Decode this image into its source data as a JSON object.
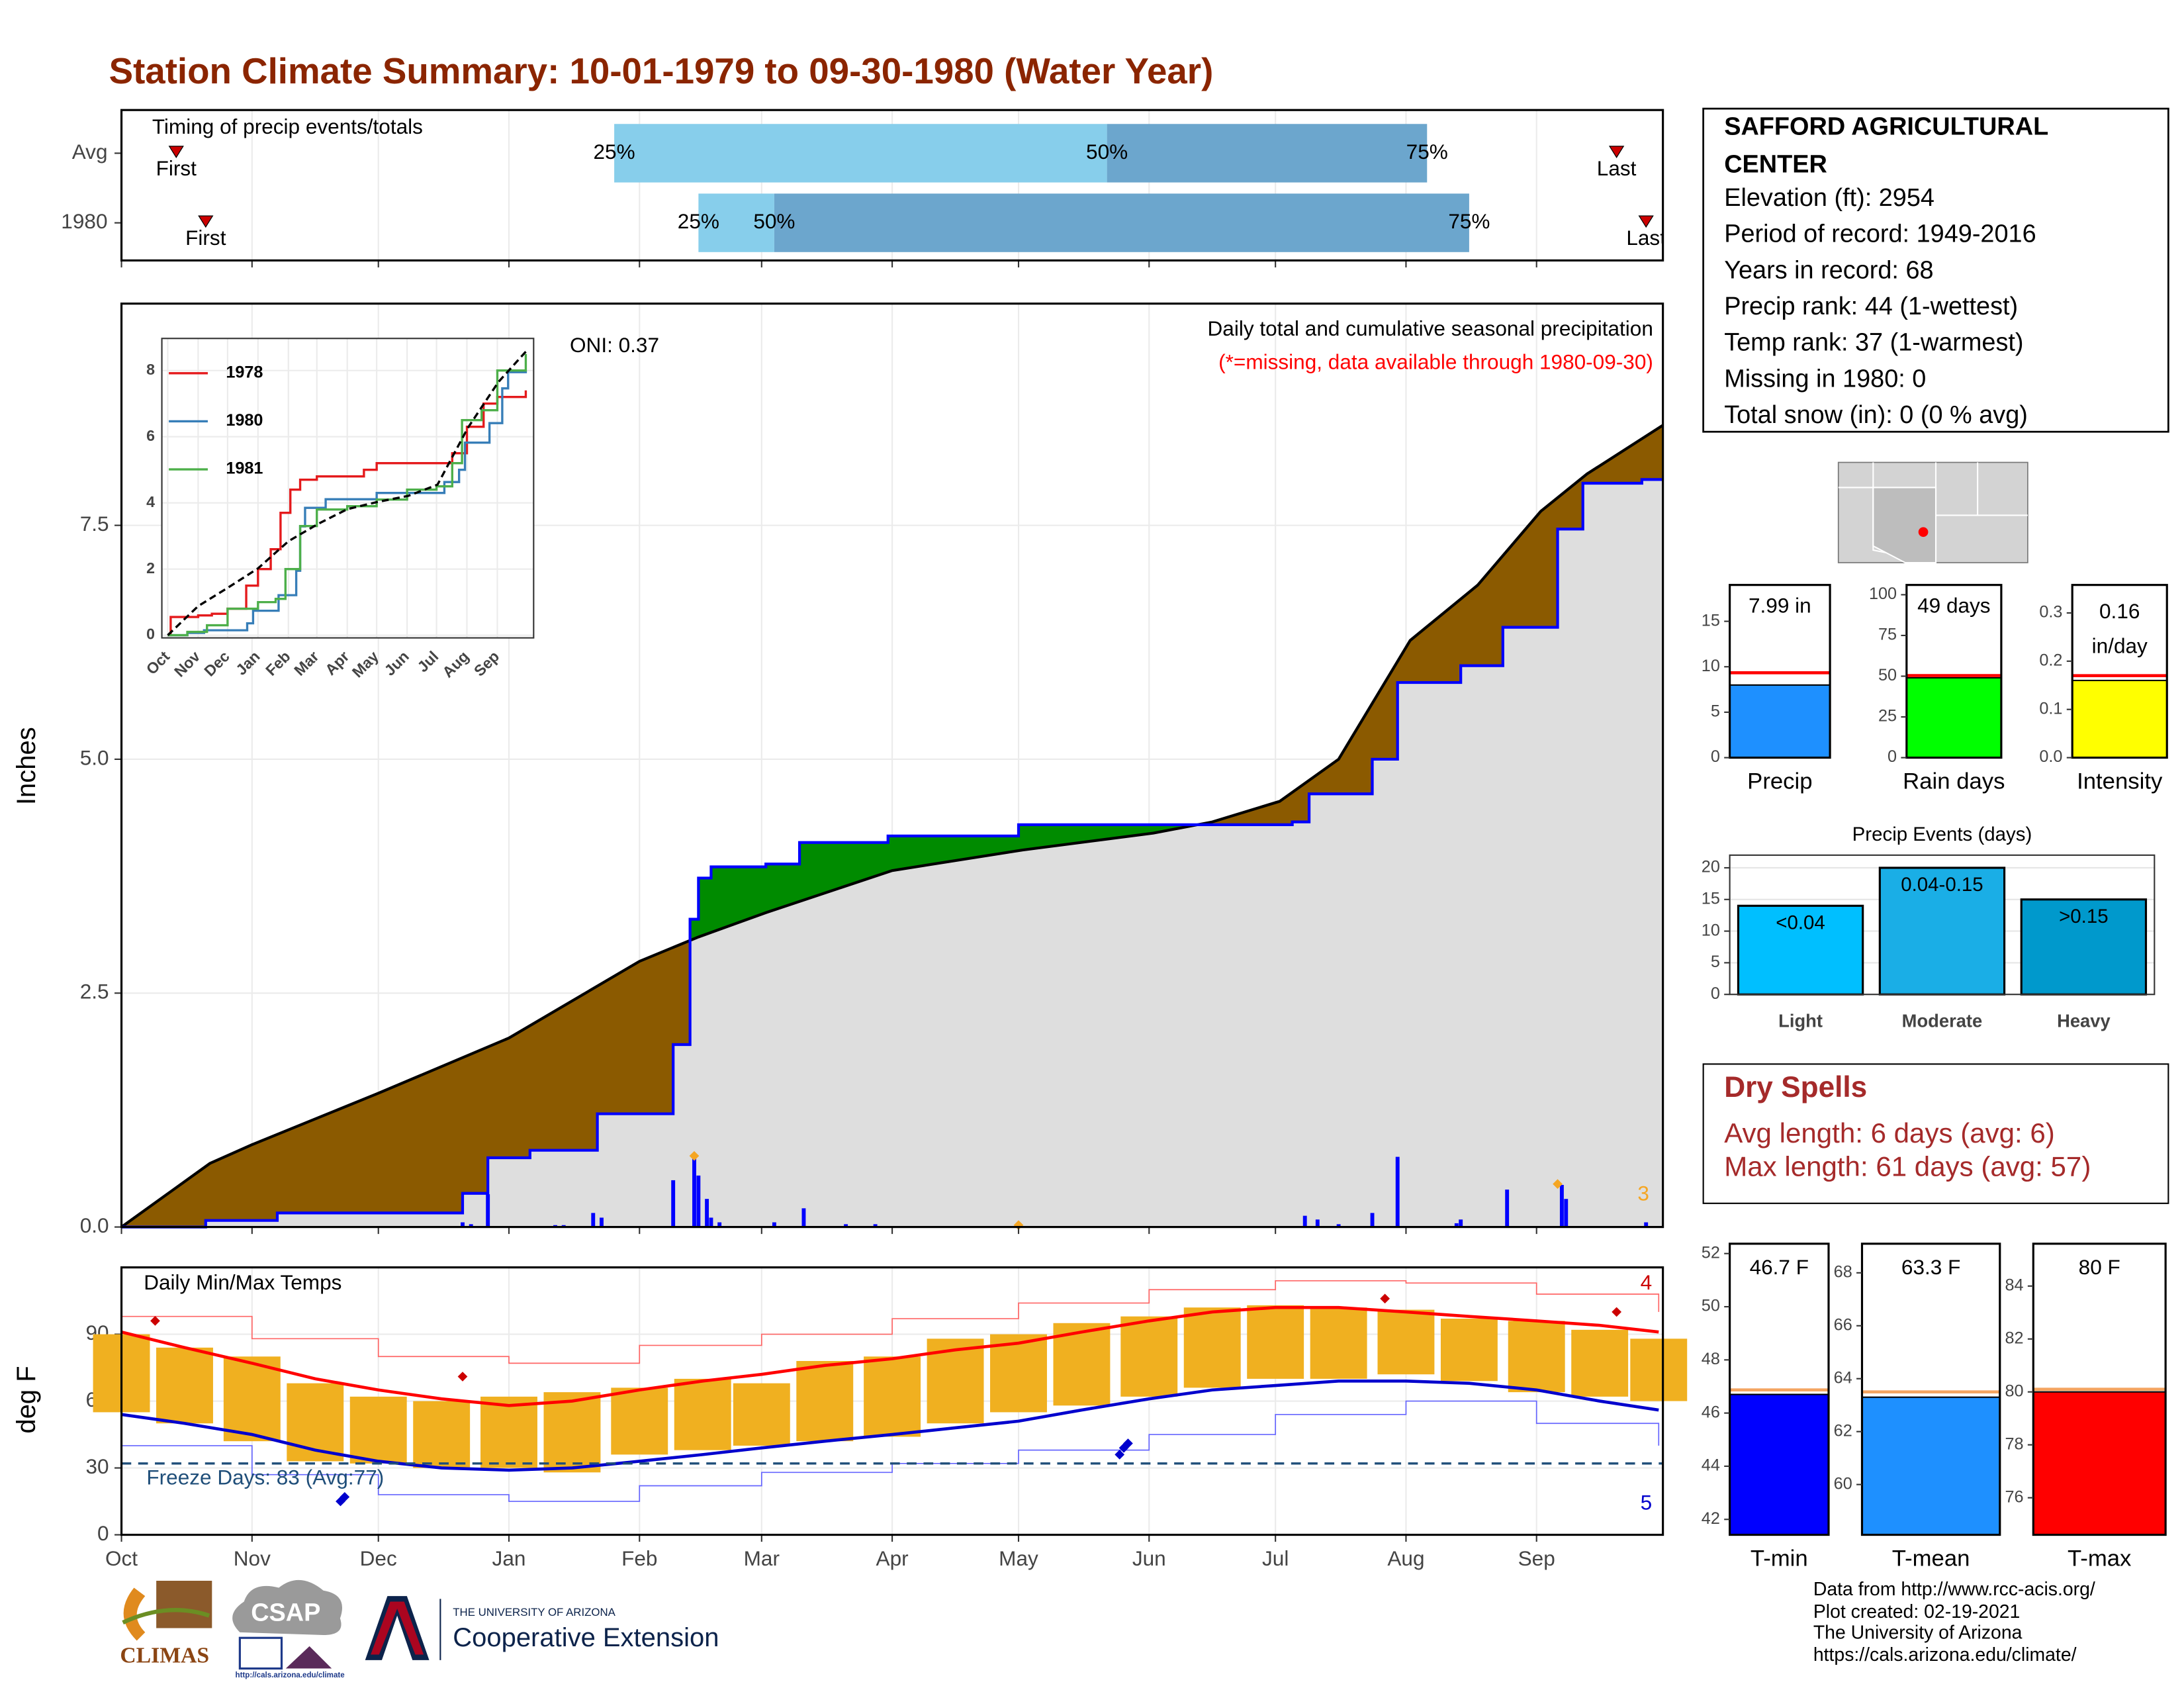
{
  "title": "Station Climate Summary: 10-01-1979 to 09-30-1980 (Water Year)",
  "chart_data": [
    {
      "type": "timing",
      "title": "Timing of precip events/totals",
      "xlim": [
        0,
        366
      ],
      "categories": [
        "Avg",
        "1980"
      ],
      "first": {
        "label": "First",
        "values": [
          13,
          20
        ]
      },
      "last": {
        "label": "Last",
        "values": [
          355,
          362
        ]
      },
      "quantiles": [
        {
          "label": "25%",
          "values": [
            117,
            137
          ]
        },
        {
          "label": "50%",
          "values": [
            234,
            155
          ]
        },
        {
          "label": "75%",
          "values": [
            310,
            320
          ]
        }
      ],
      "colors": [
        "#87ceeb",
        "#6ca6cd"
      ],
      "marker_color": "#cc0000"
    },
    {
      "type": "cumulative_precip",
      "title": "Daily total and cumulative seasonal precipitation",
      "subtitle": "(*=missing, data available through 1980-09-30)",
      "annotation": "ONI: 0.37",
      "ylabel": "Inches",
      "xlim": [
        0,
        366
      ],
      "ylim": [
        0,
        9.87
      ],
      "yticks": [
        {
          "value": 0,
          "label": "0.0"
        },
        2.5,
        {
          "value": 5,
          "label": "5.0"
        },
        7.5
      ],
      "grid": true,
      "fill_color": "#dedede",
      "below_color": "#8b5a00",
      "above_color": "#008b00",
      "average": {
        "color": "#000000",
        "x": [
          0,
          21,
          31,
          61,
          92,
          123,
          137,
          153,
          183,
          214,
          245,
          259,
          275,
          289,
          306,
          322,
          337,
          348,
          366
        ],
        "values": [
          0,
          0.68,
          0.88,
          1.43,
          2.02,
          2.84,
          3.1,
          3.36,
          3.81,
          4.03,
          4.21,
          4.33,
          4.55,
          5.0,
          6.27,
          6.86,
          7.65,
          8.05,
          8.57
        ]
      },
      "observed": {
        "color": "#0000ff",
        "x": [
          0,
          20,
          37,
          81,
          87,
          97,
          113,
          131,
          135,
          137,
          140,
          153,
          161,
          182,
          213,
          278,
          282,
          297,
          303,
          318,
          328,
          341,
          347,
          361,
          366
        ],
        "values": [
          0,
          0.07,
          0.15,
          0.36,
          0.74,
          0.82,
          1.21,
          1.95,
          3.29,
          3.73,
          3.85,
          3.88,
          4.11,
          4.18,
          4.3,
          4.33,
          4.63,
          5.0,
          5.82,
          6.0,
          6.41,
          7.46,
          7.95,
          7.99,
          7.99
        ]
      },
      "daily": {
        "color": "#0000ff",
        "x": [
          81,
          83,
          87,
          103,
          105,
          112,
          114,
          131,
          136,
          137,
          139,
          140,
          142,
          155,
          162,
          172,
          179,
          281,
          284,
          289,
          297,
          303,
          317,
          318,
          329,
          342,
          343,
          362
        ],
        "values": [
          0.05,
          0.03,
          0.35,
          0.02,
          0.02,
          0.15,
          0.1,
          0.5,
          0.75,
          0.55,
          0.3,
          0.1,
          0.05,
          0.05,
          0.2,
          0.03,
          0.03,
          0.12,
          0.08,
          0.03,
          0.15,
          0.75,
          0.04,
          0.08,
          0.4,
          0.45,
          0.3,
          0.05
        ]
      },
      "records": {
        "color": "#f5a623",
        "x": [
          136,
          213,
          341
        ],
        "values": [
          0.76,
          0.02,
          0.46
        ],
        "count": 3
      }
    },
    {
      "type": "line",
      "xlim": [
        -6,
        373
      ],
      "ylim": [
        -0.08,
        8.97
      ],
      "yticks": [
        0,
        2,
        4,
        6,
        8
      ],
      "xticks": [
        {
          "value": 0,
          "label": "Oct"
        },
        {
          "value": 31,
          "label": "Nov"
        },
        {
          "value": 61,
          "label": "Dec"
        },
        {
          "value": 92,
          "label": "Jan"
        },
        {
          "value": 123,
          "label": "Feb"
        },
        {
          "value": 152,
          "label": "Mar"
        },
        {
          "value": 183,
          "label": "Apr"
        },
        {
          "value": 213,
          "label": "May"
        },
        {
          "value": 244,
          "label": "Jun"
        },
        {
          "value": 274,
          "label": "Jul"
        },
        {
          "value": 305,
          "label": "Aug"
        },
        {
          "value": 336,
          "label": "Sep"
        }
      ],
      "series": [
        {
          "name": "1978",
          "color": "#e41a1c",
          "x": [
            0,
            3,
            31,
            45,
            61,
            80,
            92,
            105,
            115,
            125,
            135,
            152,
            183,
            200,
            213,
            244,
            274,
            290,
            305,
            322,
            336,
            365
          ],
          "values": [
            0,
            0.55,
            0.6,
            0.65,
            0.8,
            1.5,
            2.0,
            2.6,
            3.7,
            4.4,
            4.7,
            4.8,
            4.8,
            5.0,
            5.2,
            5.2,
            5.2,
            5.5,
            6.3,
            7.0,
            7.2,
            7.4
          ]
        },
        {
          "name": "1980",
          "color": "#377eb8",
          "x": [
            0,
            20,
            37,
            81,
            87,
            113,
            131,
            135,
            140,
            161,
            213,
            282,
            297,
            303,
            328,
            341,
            347,
            365
          ],
          "values": [
            0,
            0.07,
            0.15,
            0.36,
            0.74,
            1.21,
            1.95,
            3.29,
            3.85,
            4.11,
            4.3,
            4.63,
            5.0,
            5.82,
            6.41,
            7.46,
            7.95,
            7.99
          ]
        },
        {
          "name": "1981",
          "color": "#4daf4a",
          "x": [
            0,
            20,
            40,
            61,
            92,
            110,
            120,
            135,
            152,
            183,
            213,
            244,
            274,
            290,
            300,
            320,
            336,
            365
          ],
          "values": [
            0,
            0.1,
            0.3,
            0.8,
            1.0,
            1.1,
            2.0,
            3.3,
            3.8,
            3.9,
            4.1,
            4.4,
            4.5,
            5.2,
            6.5,
            6.8,
            8.0,
            8.5
          ]
        }
      ],
      "average": {
        "color": "#000000",
        "x": [
          0,
          31,
          61,
          92,
          123,
          153,
          183,
          214,
          245,
          275,
          306,
          337,
          365
        ],
        "values": [
          0,
          0.88,
          1.43,
          2.02,
          2.84,
          3.36,
          3.81,
          4.03,
          4.21,
          4.55,
          6.27,
          7.65,
          8.57
        ]
      }
    },
    {
      "type": "temperature",
      "title": "Daily Min/Max Temps",
      "ylabel": "deg F",
      "xlim": [
        0,
        366
      ],
      "ylim": [
        0,
        120
      ],
      "yticks": [
        0,
        30,
        60,
        90
      ],
      "grid": true,
      "xticks": [
        {
          "value": 0,
          "label": "Oct"
        },
        {
          "value": 31,
          "label": "Nov"
        },
        {
          "value": 61,
          "label": "Dec"
        },
        {
          "value": 92,
          "label": "Jan"
        },
        {
          "value": 123,
          "label": "Feb"
        },
        {
          "value": 152,
          "label": "Mar"
        },
        {
          "value": 183,
          "label": "Apr"
        },
        {
          "value": 213,
          "label": "May"
        },
        {
          "value": 244,
          "label": "Jun"
        },
        {
          "value": 274,
          "label": "Jul"
        },
        {
          "value": 305,
          "label": "Aug"
        },
        {
          "value": 336,
          "label": "Sep"
        }
      ],
      "x": [
        0,
        15,
        31,
        46,
        61,
        76,
        92,
        107,
        123,
        138,
        152,
        167,
        183,
        198,
        213,
        228,
        244,
        259,
        274,
        289,
        305,
        320,
        336,
        351,
        365
      ],
      "observed": {
        "color": "#f0b020",
        "high": [
          90,
          84,
          80,
          68,
          62,
          60,
          62,
          64,
          66,
          70,
          68,
          78,
          80,
          88,
          90,
          95,
          98,
          102,
          103,
          102,
          101,
          97,
          96,
          92,
          88
        ],
        "low": [
          55,
          50,
          42,
          33,
          32,
          30,
          30,
          28,
          36,
          38,
          40,
          42,
          44,
          50,
          55,
          58,
          62,
          66,
          70,
          70,
          72,
          69,
          64,
          62,
          60
        ]
      },
      "avg_max": {
        "color": "#ff0000",
        "values": [
          91,
          84,
          77,
          70,
          65,
          61,
          58,
          60,
          65,
          69,
          72,
          76,
          79,
          83,
          86,
          91,
          96,
          100,
          102,
          102,
          100,
          98,
          96,
          94,
          91
        ]
      },
      "avg_min": {
        "color": "#0000cd",
        "values": [
          54,
          50,
          45,
          38,
          33,
          30,
          29,
          30,
          33,
          36,
          39,
          42,
          45,
          48,
          51,
          56,
          61,
          65,
          67,
          69,
          69,
          68,
          65,
          60,
          56
        ]
      },
      "record_max": {
        "color": "#ff6666",
        "x": [
          0,
          31,
          61,
          92,
          123,
          152,
          183,
          213,
          244,
          274,
          305,
          336,
          365
        ],
        "values": [
          98,
          88,
          80,
          77,
          85,
          90,
          97,
          104,
          110,
          114,
          113,
          108,
          100
        ]
      },
      "record_min": {
        "color": "#6666ff",
        "x": [
          0,
          31,
          61,
          92,
          123,
          152,
          183,
          213,
          244,
          274,
          305,
          336,
          365
        ],
        "values": [
          40,
          27,
          18,
          15,
          22,
          28,
          32,
          38,
          45,
          54,
          60,
          50,
          40
        ]
      },
      "record_highs": {
        "color": "#cc0000",
        "x": [
          8,
          81,
          300,
          355
        ],
        "values": [
          96,
          71,
          106,
          100
        ],
        "count": 4
      },
      "record_lows": {
        "color": "#0000cd",
        "x": [
          52,
          53,
          237,
          238,
          239
        ],
        "values": [
          15,
          17,
          36,
          39,
          41
        ],
        "count": 5
      },
      "freeze": {
        "value": 32,
        "label": "Freeze Days: 83 (Avg:77)",
        "color": "#1f4e79"
      }
    },
    {
      "type": "gauge",
      "label": "Precip",
      "value": 7.99,
      "value_label": "7.99 in",
      "avg": 9.34,
      "color": "#1e90ff",
      "avg_color": "#ff0000",
      "ylim": [
        0,
        19.0
      ],
      "yticks": [
        0,
        5,
        10,
        15
      ]
    },
    {
      "type": "gauge",
      "label": "Rain days",
      "value": 49,
      "value_label": "49 days",
      "avg": 50.4,
      "color": "#00ff00",
      "avg_color": "#ff0000",
      "ylim": [
        0,
        106
      ],
      "yticks": [
        0,
        25,
        50,
        75,
        100
      ]
    },
    {
      "type": "gauge",
      "label": "Intensity",
      "value": 0.16,
      "value_label": [
        "0.16",
        "in/day"
      ],
      "avg": 0.17,
      "color": "#ffff00",
      "avg_color": "#ff0000",
      "ylim": [
        0,
        0.358
      ],
      "yticks": [
        {
          "value": 0,
          "label": "0.0"
        },
        0.1,
        0.2,
        0.3
      ]
    },
    {
      "type": "bar",
      "title": "Precip Events (days)",
      "categories": [
        "Light",
        "Moderate",
        "Heavy"
      ],
      "values": [
        14,
        20,
        15
      ],
      "bar_labels": [
        "<0.04",
        "0.04-0.15",
        ">0.15"
      ],
      "colors": [
        "#00bfff",
        "#1aaee6",
        "#0099cc"
      ],
      "ylim": [
        0,
        22
      ],
      "yticks": [
        0,
        5,
        10,
        15,
        20
      ],
      "grid": true
    },
    {
      "type": "gauge",
      "label": "T-min",
      "value": 46.7,
      "value_label": "46.7 F",
      "avg": 46.87,
      "color": "#0000ff",
      "avg_color": "#f4a460",
      "ylim": [
        41.42,
        52.37
      ],
      "yticks": [
        42,
        44,
        46,
        48,
        50,
        52
      ]
    },
    {
      "type": "gauge",
      "label": "T-mean",
      "value": 63.3,
      "value_label": "63.3 F",
      "avg": 63.5,
      "color": "#1e90ff",
      "avg_color": "#f4a460",
      "ylim": [
        58.1,
        69.1
      ],
      "yticks": [
        60,
        62,
        64,
        66,
        68
      ]
    },
    {
      "type": "gauge",
      "label": "T-max",
      "value": 80,
      "value_label": "80 F",
      "avg": 80.1,
      "color": "#ff0000",
      "avg_color": "#f4a460",
      "ylim": [
        74.6,
        85.6
      ],
      "yticks": [
        76,
        78,
        80,
        82,
        84
      ]
    }
  ],
  "station": {
    "name_lines": [
      "SAFFORD AGRICULTURAL",
      "CENTER"
    ],
    "lines": [
      "Elevation (ft): 2954",
      "Period of record: 1949-2016",
      "Years in record: 68",
      "Precip rank: 44 (1-wettest)",
      "Temp rank: 37 (1-warmest)",
      "Missing in 1980: 0",
      "Total snow (in): 0 (0 % avg)"
    ]
  },
  "dry_spells": {
    "title": "Dry Spells",
    "lines": [
      "Avg length: 6 days (avg: 6)",
      "Max length: 61 days (avg: 57)"
    ]
  },
  "footer": [
    "Data from http://www.rcc-acis.org/",
    "Plot created: 02-19-2021",
    "The University of Arizona",
    "https://cals.arizona.edu/climate/"
  ],
  "logos": {
    "climas": "CLIMAS",
    "csap": "CSAP",
    "csap_url": "http://cals.arizona.edu/climate",
    "ua_small": "THE UNIVERSITY OF ARIZONA",
    "ua_large": "Cooperative Extension"
  }
}
